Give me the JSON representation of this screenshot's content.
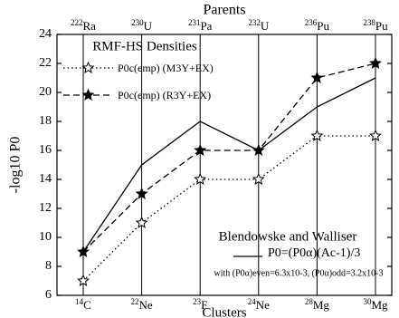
{
  "chart_data": {
    "type": "line",
    "title": "Parents",
    "x_label": "Clusters",
    "y_label": "-log10 P0",
    "categories": [
      "14C",
      "22Ne",
      "23F",
      "24Ne",
      "28Mg",
      "30Mg"
    ],
    "top_categories": [
      "222Ra",
      "230U",
      "231Pa",
      "232U",
      "236Pu",
      "238Pu"
    ],
    "ylim": [
      6,
      24
    ],
    "yticks": [
      6,
      8,
      10,
      12,
      14,
      16,
      18,
      20,
      22,
      24
    ],
    "grid": true,
    "legend_title": "RMF-HS Densities",
    "series": [
      {
        "name": "P0c(emp) (M3Y+EX)",
        "color": "#000000",
        "style": "dotted",
        "marker": "open-star",
        "values": [
          7,
          11,
          14,
          14,
          17,
          17
        ]
      },
      {
        "name": "P0c(emp) (R3Y+EX)",
        "color": "#000000",
        "style": "dashed",
        "marker": "filled-star",
        "values": [
          9,
          13,
          16,
          16,
          21,
          22
        ]
      },
      {
        "name": "P0=(P0α)(Ac-1)/3",
        "color": "#000000",
        "style": "solid",
        "marker": "none",
        "values": [
          9,
          15,
          18,
          16,
          19,
          21
        ]
      }
    ],
    "annotations": [
      "Blendowske and Walliser",
      "with (P0α)even=6.3x10-3, (P0α)odd=3.2x10-3"
    ]
  }
}
